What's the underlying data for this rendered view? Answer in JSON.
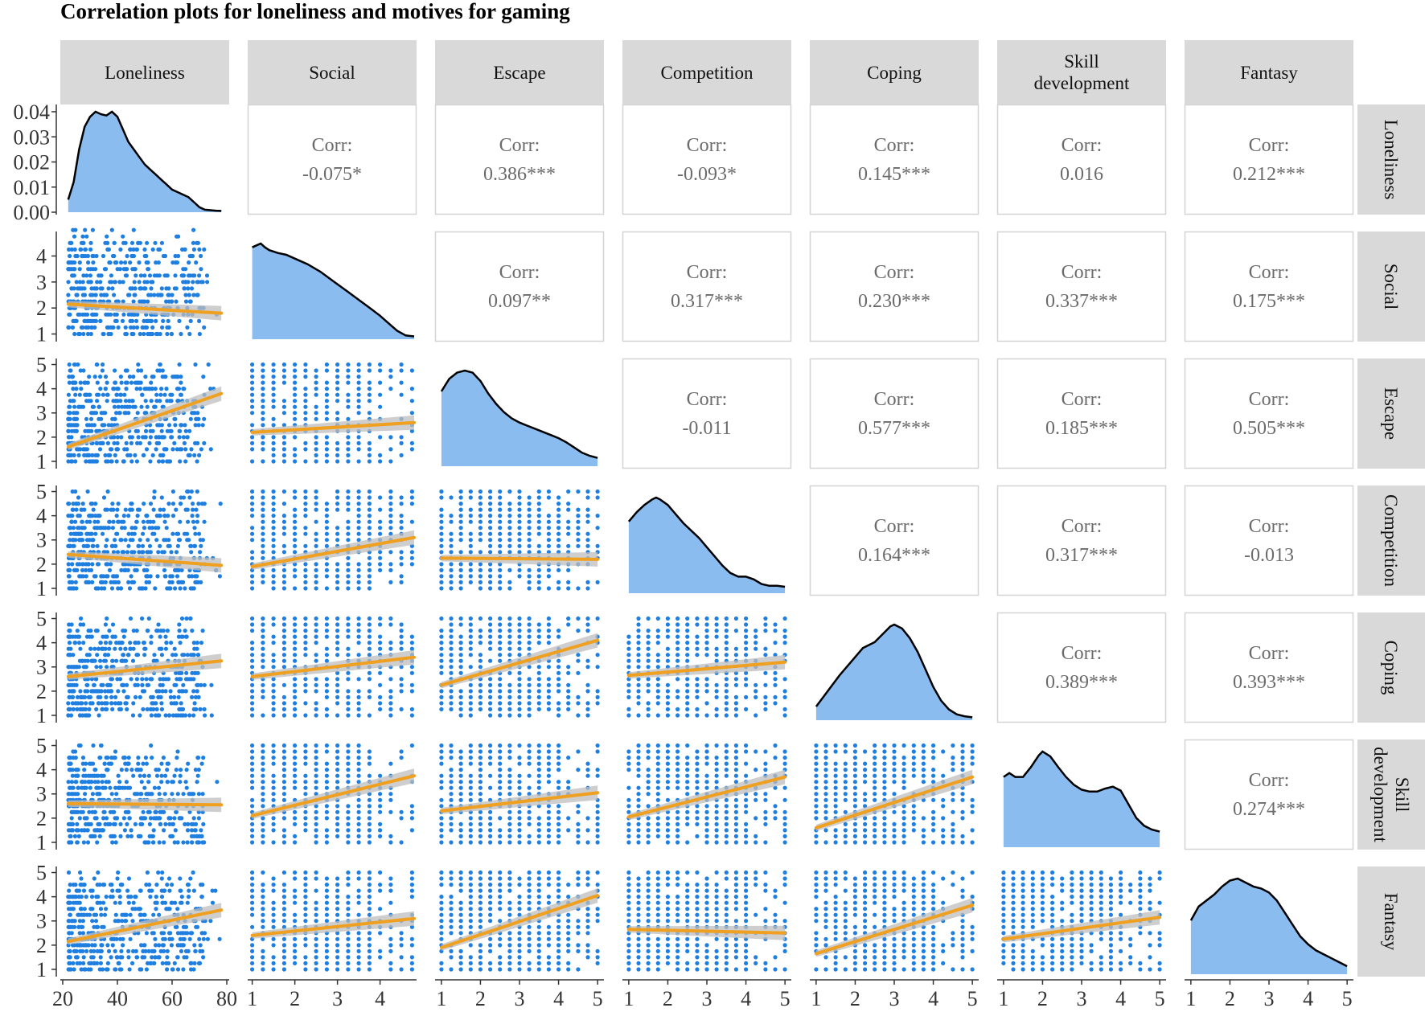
{
  "title": "Correlation plots for loneliness and motives for gaming",
  "colors": {
    "strip_bg": "#d9d9d9",
    "panel_border": "#d4d4d4",
    "corr_text": "#6b6b6b",
    "point": "#1f7fe0",
    "density_fill": "#8bbcf0",
    "density_line": "#000000",
    "fit_line": "#f0a020",
    "fit_band": "#bdbdbd"
  },
  "corr_label": "Corr:",
  "chart_data": {
    "type": "scatter",
    "layout": "pairs-matrix",
    "variables": [
      "Loneliness",
      "Social",
      "Escape",
      "Competition",
      "Coping",
      "Skill development",
      "Fantasy"
    ],
    "strip_labels": [
      "Loneliness",
      "Social",
      "Escape",
      "Competition",
      "Coping",
      "Skill\ndevelopment",
      "Fantasy"
    ],
    "axes": {
      "Loneliness": {
        "range": [
          20,
          80
        ],
        "ticks": [
          "20",
          "40",
          "60",
          "80"
        ]
      },
      "Social": {
        "range": [
          0.95,
          4.8
        ],
        "ticks": [
          "1",
          "2",
          "3",
          "4"
        ]
      },
      "Escape": {
        "range": [
          0.9,
          5.1
        ],
        "ticks": [
          "1",
          "2",
          "3",
          "4",
          "5"
        ]
      },
      "Competition": {
        "range": [
          0.9,
          5.1
        ],
        "ticks": [
          "1",
          "2",
          "3",
          "4",
          "5"
        ]
      },
      "Coping": {
        "range": [
          0.9,
          5.1
        ],
        "ticks": [
          "1",
          "2",
          "3",
          "4",
          "5"
        ]
      },
      "Skill development": {
        "range": [
          0.9,
          5.1
        ],
        "ticks": [
          "1",
          "2",
          "3",
          "4",
          "5"
        ]
      },
      "Fantasy": {
        "range": [
          0.9,
          5.1
        ],
        "ticks": [
          "1",
          "2",
          "3",
          "4",
          "5"
        ]
      }
    },
    "diag_y_axis": {
      "range": [
        0,
        0.04
      ],
      "ticks": [
        "0.00",
        "0.01",
        "0.02",
        "0.03",
        "0.04"
      ]
    },
    "row_y_axes": {
      "Social": {
        "range": [
          0.8,
          4.85
        ],
        "ticks": [
          "1",
          "2",
          "3",
          "4"
        ]
      },
      "Escape": {
        "range": [
          0.8,
          5.15
        ],
        "ticks": [
          "1",
          "2",
          "3",
          "4",
          "5"
        ]
      },
      "Competition": {
        "range": [
          0.8,
          5.15
        ],
        "ticks": [
          "1",
          "2",
          "3",
          "4",
          "5"
        ]
      },
      "Coping": {
        "range": [
          0.8,
          5.15
        ],
        "ticks": [
          "1",
          "2",
          "3",
          "4",
          "5"
        ]
      },
      "Skill development": {
        "range": [
          0.8,
          5.15
        ],
        "ticks": [
          "1",
          "2",
          "3",
          "4",
          "5"
        ]
      },
      "Fantasy": {
        "range": [
          0.8,
          5.15
        ],
        "ticks": [
          "1",
          "2",
          "3",
          "4",
          "5"
        ]
      }
    },
    "correlations": [
      {
        "row": "Loneliness",
        "col": "Social",
        "value": "-0.075*"
      },
      {
        "row": "Loneliness",
        "col": "Escape",
        "value": "0.386***"
      },
      {
        "row": "Loneliness",
        "col": "Competition",
        "value": "-0.093*"
      },
      {
        "row": "Loneliness",
        "col": "Coping",
        "value": "0.145***"
      },
      {
        "row": "Loneliness",
        "col": "Skill development",
        "value": "0.016"
      },
      {
        "row": "Loneliness",
        "col": "Fantasy",
        "value": "0.212***"
      },
      {
        "row": "Social",
        "col": "Escape",
        "value": "0.097**"
      },
      {
        "row": "Social",
        "col": "Competition",
        "value": "0.317***"
      },
      {
        "row": "Social",
        "col": "Coping",
        "value": "0.230***"
      },
      {
        "row": "Social",
        "col": "Skill development",
        "value": "0.337***"
      },
      {
        "row": "Social",
        "col": "Fantasy",
        "value": "0.175***"
      },
      {
        "row": "Escape",
        "col": "Competition",
        "value": "-0.011"
      },
      {
        "row": "Escape",
        "col": "Coping",
        "value": "0.577***"
      },
      {
        "row": "Escape",
        "col": "Skill development",
        "value": "0.185***"
      },
      {
        "row": "Escape",
        "col": "Fantasy",
        "value": "0.505***"
      },
      {
        "row": "Competition",
        "col": "Coping",
        "value": "0.164***"
      },
      {
        "row": "Competition",
        "col": "Skill development",
        "value": "0.317***"
      },
      {
        "row": "Competition",
        "col": "Fantasy",
        "value": "-0.013"
      },
      {
        "row": "Coping",
        "col": "Skill development",
        "value": "0.389***"
      },
      {
        "row": "Coping",
        "col": "Fantasy",
        "value": "0.393***"
      },
      {
        "row": "Skill development",
        "col": "Fantasy",
        "value": "0.274***"
      }
    ],
    "fits": [
      {
        "x": "Loneliness",
        "y": "Social",
        "line": [
          [
            22,
            2.15
          ],
          [
            78,
            1.8
          ]
        ]
      },
      {
        "x": "Loneliness",
        "y": "Escape",
        "line": [
          [
            22,
            1.6
          ],
          [
            78,
            3.8
          ]
        ]
      },
      {
        "x": "Social",
        "y": "Escape",
        "line": [
          [
            1,
            2.2
          ],
          [
            4.8,
            2.6
          ]
        ]
      },
      {
        "x": "Loneliness",
        "y": "Competition",
        "line": [
          [
            22,
            2.4
          ],
          [
            78,
            1.95
          ]
        ]
      },
      {
        "x": "Social",
        "y": "Competition",
        "line": [
          [
            1,
            1.9
          ],
          [
            4.8,
            3.1
          ]
        ]
      },
      {
        "x": "Escape",
        "y": "Competition",
        "line": [
          [
            1,
            2.25
          ],
          [
            5,
            2.2
          ]
        ]
      },
      {
        "x": "Loneliness",
        "y": "Coping",
        "line": [
          [
            22,
            2.6
          ],
          [
            78,
            3.25
          ]
        ]
      },
      {
        "x": "Social",
        "y": "Coping",
        "line": [
          [
            1,
            2.6
          ],
          [
            4.8,
            3.4
          ]
        ]
      },
      {
        "x": "Escape",
        "y": "Coping",
        "line": [
          [
            1,
            2.25
          ],
          [
            5,
            4.1
          ]
        ]
      },
      {
        "x": "Competition",
        "y": "Coping",
        "line": [
          [
            1,
            2.65
          ],
          [
            5,
            3.2
          ]
        ]
      },
      {
        "x": "Loneliness",
        "y": "Skill development",
        "line": [
          [
            22,
            2.6
          ],
          [
            78,
            2.55
          ]
        ]
      },
      {
        "x": "Social",
        "y": "Skill development",
        "line": [
          [
            1,
            2.1
          ],
          [
            4.8,
            3.75
          ]
        ]
      },
      {
        "x": "Escape",
        "y": "Skill development",
        "line": [
          [
            1,
            2.3
          ],
          [
            5,
            3.05
          ]
        ]
      },
      {
        "x": "Competition",
        "y": "Skill development",
        "line": [
          [
            1,
            2.05
          ],
          [
            5,
            3.7
          ]
        ]
      },
      {
        "x": "Coping",
        "y": "Skill development",
        "line": [
          [
            1,
            1.6
          ],
          [
            5,
            3.7
          ]
        ]
      },
      {
        "x": "Loneliness",
        "y": "Fantasy",
        "line": [
          [
            22,
            2.15
          ],
          [
            78,
            3.45
          ]
        ]
      },
      {
        "x": "Social",
        "y": "Fantasy",
        "line": [
          [
            1,
            2.4
          ],
          [
            4.8,
            3.1
          ]
        ]
      },
      {
        "x": "Escape",
        "y": "Fantasy",
        "line": [
          [
            1,
            1.9
          ],
          [
            5,
            4.05
          ]
        ]
      },
      {
        "x": "Competition",
        "y": "Fantasy",
        "line": [
          [
            1,
            2.65
          ],
          [
            5,
            2.5
          ]
        ]
      },
      {
        "x": "Coping",
        "y": "Fantasy",
        "line": [
          [
            1,
            1.65
          ],
          [
            5,
            3.65
          ]
        ]
      },
      {
        "x": "Skill development",
        "y": "Fantasy",
        "line": [
          [
            1,
            2.25
          ],
          [
            5,
            3.15
          ]
        ]
      }
    ],
    "densities": {
      "Loneliness": [
        [
          22,
          0.005
        ],
        [
          24,
          0.012
        ],
        [
          26,
          0.025
        ],
        [
          28,
          0.034
        ],
        [
          30,
          0.038
        ],
        [
          32,
          0.04
        ],
        [
          34,
          0.039
        ],
        [
          36,
          0.0385
        ],
        [
          38,
          0.04
        ],
        [
          40,
          0.038
        ],
        [
          42,
          0.033
        ],
        [
          44,
          0.028
        ],
        [
          46,
          0.025
        ],
        [
          48,
          0.022
        ],
        [
          50,
          0.019
        ],
        [
          52,
          0.017
        ],
        [
          54,
          0.015
        ],
        [
          56,
          0.013
        ],
        [
          58,
          0.011
        ],
        [
          60,
          0.009
        ],
        [
          62,
          0.008
        ],
        [
          64,
          0.007
        ],
        [
          66,
          0.006
        ],
        [
          68,
          0.004
        ],
        [
          70,
          0.002
        ],
        [
          72,
          0.001
        ],
        [
          74,
          0.0008
        ],
        [
          76,
          0.0006
        ],
        [
          78,
          0.0005
        ]
      ],
      "Social": [
        [
          1.0,
          0.98
        ],
        [
          1.1,
          1.0
        ],
        [
          1.2,
          1.02
        ],
        [
          1.3,
          0.98
        ],
        [
          1.4,
          0.95
        ],
        [
          1.6,
          0.92
        ],
        [
          1.8,
          0.9
        ],
        [
          2.0,
          0.86
        ],
        [
          2.3,
          0.8
        ],
        [
          2.6,
          0.72
        ],
        [
          2.9,
          0.62
        ],
        [
          3.2,
          0.52
        ],
        [
          3.5,
          0.42
        ],
        [
          3.8,
          0.32
        ],
        [
          4.0,
          0.25
        ],
        [
          4.2,
          0.17
        ],
        [
          4.4,
          0.09
        ],
        [
          4.6,
          0.04
        ],
        [
          4.8,
          0.03
        ]
      ],
      "Escape": [
        [
          1.0,
          0.72
        ],
        [
          1.2,
          0.84
        ],
        [
          1.4,
          0.9
        ],
        [
          1.6,
          0.92
        ],
        [
          1.8,
          0.9
        ],
        [
          2.0,
          0.82
        ],
        [
          2.2,
          0.7
        ],
        [
          2.4,
          0.6
        ],
        [
          2.6,
          0.52
        ],
        [
          2.8,
          0.46
        ],
        [
          3.0,
          0.42
        ],
        [
          3.2,
          0.39
        ],
        [
          3.4,
          0.36
        ],
        [
          3.6,
          0.33
        ],
        [
          3.8,
          0.3
        ],
        [
          4.0,
          0.27
        ],
        [
          4.2,
          0.23
        ],
        [
          4.4,
          0.18
        ],
        [
          4.6,
          0.13
        ],
        [
          4.8,
          0.1
        ],
        [
          5.0,
          0.08
        ]
      ],
      "Competition": [
        [
          1.0,
          0.78
        ],
        [
          1.2,
          0.88
        ],
        [
          1.4,
          0.96
        ],
        [
          1.6,
          1.02
        ],
        [
          1.7,
          1.04
        ],
        [
          1.8,
          1.02
        ],
        [
          2.0,
          0.96
        ],
        [
          2.2,
          0.86
        ],
        [
          2.4,
          0.76
        ],
        [
          2.6,
          0.68
        ],
        [
          2.8,
          0.6
        ],
        [
          3.0,
          0.5
        ],
        [
          3.2,
          0.4
        ],
        [
          3.4,
          0.3
        ],
        [
          3.6,
          0.22
        ],
        [
          3.8,
          0.18
        ],
        [
          4.0,
          0.18
        ],
        [
          4.2,
          0.15
        ],
        [
          4.4,
          0.1
        ],
        [
          4.6,
          0.08
        ],
        [
          4.8,
          0.08
        ],
        [
          5.0,
          0.07
        ]
      ],
      "Coping": [
        [
          1.0,
          0.14
        ],
        [
          1.3,
          0.3
        ],
        [
          1.6,
          0.46
        ],
        [
          1.9,
          0.6
        ],
        [
          2.2,
          0.74
        ],
        [
          2.5,
          0.8
        ],
        [
          2.7,
          0.88
        ],
        [
          2.9,
          0.96
        ],
        [
          3.0,
          0.98
        ],
        [
          3.2,
          0.94
        ],
        [
          3.4,
          0.84
        ],
        [
          3.6,
          0.7
        ],
        [
          3.8,
          0.52
        ],
        [
          4.0,
          0.34
        ],
        [
          4.2,
          0.2
        ],
        [
          4.4,
          0.11
        ],
        [
          4.6,
          0.06
        ],
        [
          4.8,
          0.04
        ],
        [
          5.0,
          0.03
        ]
      ],
      "Skill development": [
        [
          1.0,
          0.72
        ],
        [
          1.15,
          0.76
        ],
        [
          1.3,
          0.72
        ],
        [
          1.5,
          0.72
        ],
        [
          1.7,
          0.82
        ],
        [
          1.9,
          0.94
        ],
        [
          2.0,
          0.98
        ],
        [
          2.2,
          0.93
        ],
        [
          2.4,
          0.82
        ],
        [
          2.6,
          0.72
        ],
        [
          2.8,
          0.64
        ],
        [
          3.0,
          0.59
        ],
        [
          3.2,
          0.57
        ],
        [
          3.4,
          0.57
        ],
        [
          3.6,
          0.6
        ],
        [
          3.8,
          0.62
        ],
        [
          4.0,
          0.58
        ],
        [
          4.2,
          0.44
        ],
        [
          4.4,
          0.3
        ],
        [
          4.6,
          0.22
        ],
        [
          4.8,
          0.18
        ],
        [
          5.0,
          0.16
        ]
      ],
      "Fantasy": [
        [
          1.0,
          0.54
        ],
        [
          1.2,
          0.68
        ],
        [
          1.4,
          0.74
        ],
        [
          1.6,
          0.8
        ],
        [
          1.8,
          0.88
        ],
        [
          2.0,
          0.94
        ],
        [
          2.2,
          0.96
        ],
        [
          2.4,
          0.92
        ],
        [
          2.6,
          0.88
        ],
        [
          2.8,
          0.86
        ],
        [
          3.0,
          0.82
        ],
        [
          3.2,
          0.74
        ],
        [
          3.4,
          0.62
        ],
        [
          3.6,
          0.5
        ],
        [
          3.8,
          0.38
        ],
        [
          4.0,
          0.3
        ],
        [
          4.2,
          0.24
        ],
        [
          4.4,
          0.2
        ],
        [
          4.6,
          0.16
        ],
        [
          4.8,
          0.12
        ],
        [
          5.0,
          0.08
        ]
      ]
    },
    "scatter_note": "Lower-triangle panels show scatter points of individual responses (values on a 1-5 grid for motives) with linear fit lines and confidence bands."
  }
}
